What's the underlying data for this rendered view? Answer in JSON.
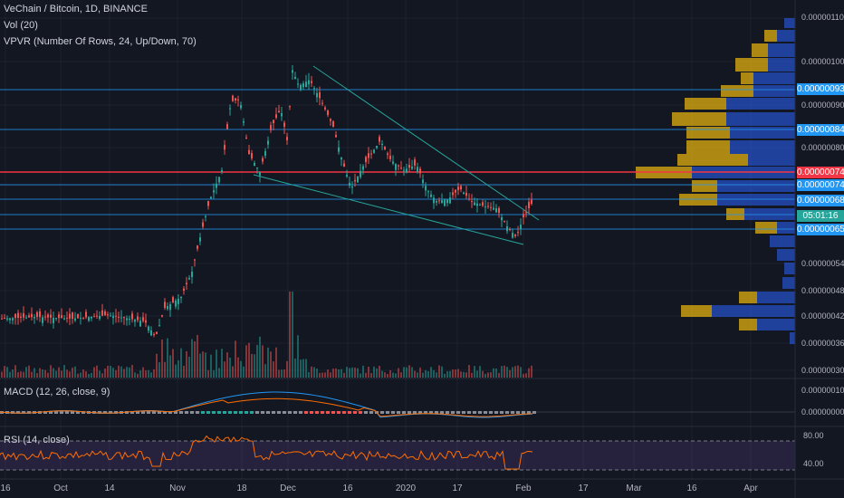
{
  "header": {
    "symbol_line": "VeChain / Bitcoin, 1D, BINANCE",
    "vol_line": "Vol (20)",
    "vpvr_line": "VPVR (Number Of Rows, 24, Up/Down, 70)"
  },
  "price_scale": {
    "ticks": [
      "0.00000110",
      "0.00000100",
      "0.00000090",
      "0.00000080",
      "0.00000074",
      "0.00000054",
      "0.00000048",
      "0.00000042",
      "0.00000036",
      "0.00000030"
    ],
    "labels": [
      {
        "text": "0.00000093",
        "color": "#2196f3"
      },
      {
        "text": "0.00000084",
        "color": "#2196f3"
      },
      {
        "text": "0.00000074",
        "color": "#f23645"
      },
      {
        "text": "0.00000074",
        "color": "#2196f3"
      },
      {
        "text": "0.00000068",
        "color": "#2196f3"
      },
      {
        "text": "05:01:16",
        "color": "#26a69a"
      },
      {
        "text": "0.00000065",
        "color": "#2196f3"
      }
    ]
  },
  "macd": {
    "label": "MACD (12, 26, close, 9)",
    "ticks": [
      "0.00000010",
      "0.00000000"
    ]
  },
  "rsi": {
    "label": "RSI (14, close)",
    "ticks": [
      "80.00",
      "40.00"
    ]
  },
  "time_axis": [
    "16",
    "Oct",
    "14",
    "Nov",
    "18",
    "Dec",
    "16",
    "2020",
    "17",
    "Feb",
    "17",
    "Mar",
    "16",
    "Apr"
  ],
  "colors": {
    "up": "#26a69a",
    "down": "#ef5350",
    "vp_up": "#2962ff",
    "vp_down": "#f0b90b",
    "hline": "#2196f3",
    "red_line": "#f23645"
  }
}
